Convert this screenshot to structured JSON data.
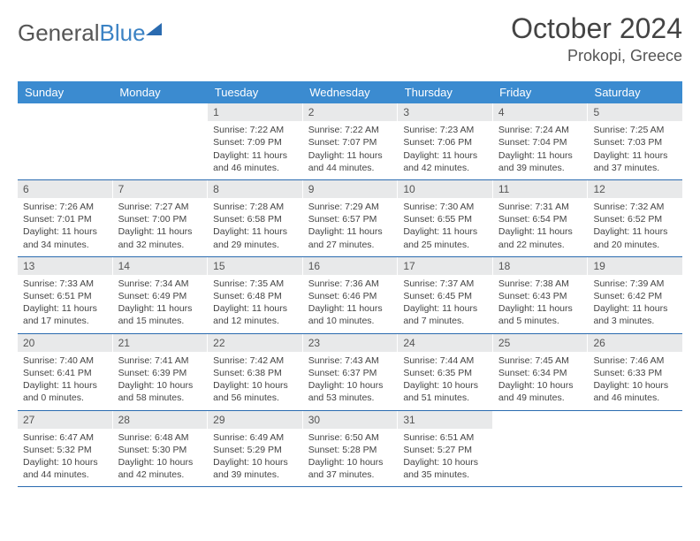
{
  "brand": {
    "name_gray": "General",
    "name_blue": "Blue"
  },
  "title": "October 2024",
  "location": "Prokopi, Greece",
  "colors": {
    "weekday_bg": "#3b8bd0",
    "weekday_fg": "#ffffff",
    "daynum_bg": "#e8e9ea",
    "row_border": "#2a6bb0",
    "text": "#444444"
  },
  "weekdays": [
    "Sunday",
    "Monday",
    "Tuesday",
    "Wednesday",
    "Thursday",
    "Friday",
    "Saturday"
  ],
  "labels": {
    "sunrise": "Sunrise:",
    "sunset": "Sunset:",
    "daylight": "Daylight:"
  },
  "weeks": [
    [
      null,
      null,
      {
        "n": "1",
        "sr": "7:22 AM",
        "ss": "7:09 PM",
        "dl": "11 hours and 46 minutes."
      },
      {
        "n": "2",
        "sr": "7:22 AM",
        "ss": "7:07 PM",
        "dl": "11 hours and 44 minutes."
      },
      {
        "n": "3",
        "sr": "7:23 AM",
        "ss": "7:06 PM",
        "dl": "11 hours and 42 minutes."
      },
      {
        "n": "4",
        "sr": "7:24 AM",
        "ss": "7:04 PM",
        "dl": "11 hours and 39 minutes."
      },
      {
        "n": "5",
        "sr": "7:25 AM",
        "ss": "7:03 PM",
        "dl": "11 hours and 37 minutes."
      }
    ],
    [
      {
        "n": "6",
        "sr": "7:26 AM",
        "ss": "7:01 PM",
        "dl": "11 hours and 34 minutes."
      },
      {
        "n": "7",
        "sr": "7:27 AM",
        "ss": "7:00 PM",
        "dl": "11 hours and 32 minutes."
      },
      {
        "n": "8",
        "sr": "7:28 AM",
        "ss": "6:58 PM",
        "dl": "11 hours and 29 minutes."
      },
      {
        "n": "9",
        "sr": "7:29 AM",
        "ss": "6:57 PM",
        "dl": "11 hours and 27 minutes."
      },
      {
        "n": "10",
        "sr": "7:30 AM",
        "ss": "6:55 PM",
        "dl": "11 hours and 25 minutes."
      },
      {
        "n": "11",
        "sr": "7:31 AM",
        "ss": "6:54 PM",
        "dl": "11 hours and 22 minutes."
      },
      {
        "n": "12",
        "sr": "7:32 AM",
        "ss": "6:52 PM",
        "dl": "11 hours and 20 minutes."
      }
    ],
    [
      {
        "n": "13",
        "sr": "7:33 AM",
        "ss": "6:51 PM",
        "dl": "11 hours and 17 minutes."
      },
      {
        "n": "14",
        "sr": "7:34 AM",
        "ss": "6:49 PM",
        "dl": "11 hours and 15 minutes."
      },
      {
        "n": "15",
        "sr": "7:35 AM",
        "ss": "6:48 PM",
        "dl": "11 hours and 12 minutes."
      },
      {
        "n": "16",
        "sr": "7:36 AM",
        "ss": "6:46 PM",
        "dl": "11 hours and 10 minutes."
      },
      {
        "n": "17",
        "sr": "7:37 AM",
        "ss": "6:45 PM",
        "dl": "11 hours and 7 minutes."
      },
      {
        "n": "18",
        "sr": "7:38 AM",
        "ss": "6:43 PM",
        "dl": "11 hours and 5 minutes."
      },
      {
        "n": "19",
        "sr": "7:39 AM",
        "ss": "6:42 PM",
        "dl": "11 hours and 3 minutes."
      }
    ],
    [
      {
        "n": "20",
        "sr": "7:40 AM",
        "ss": "6:41 PM",
        "dl": "11 hours and 0 minutes."
      },
      {
        "n": "21",
        "sr": "7:41 AM",
        "ss": "6:39 PM",
        "dl": "10 hours and 58 minutes."
      },
      {
        "n": "22",
        "sr": "7:42 AM",
        "ss": "6:38 PM",
        "dl": "10 hours and 56 minutes."
      },
      {
        "n": "23",
        "sr": "7:43 AM",
        "ss": "6:37 PM",
        "dl": "10 hours and 53 minutes."
      },
      {
        "n": "24",
        "sr": "7:44 AM",
        "ss": "6:35 PM",
        "dl": "10 hours and 51 minutes."
      },
      {
        "n": "25",
        "sr": "7:45 AM",
        "ss": "6:34 PM",
        "dl": "10 hours and 49 minutes."
      },
      {
        "n": "26",
        "sr": "7:46 AM",
        "ss": "6:33 PM",
        "dl": "10 hours and 46 minutes."
      }
    ],
    [
      {
        "n": "27",
        "sr": "6:47 AM",
        "ss": "5:32 PM",
        "dl": "10 hours and 44 minutes."
      },
      {
        "n": "28",
        "sr": "6:48 AM",
        "ss": "5:30 PM",
        "dl": "10 hours and 42 minutes."
      },
      {
        "n": "29",
        "sr": "6:49 AM",
        "ss": "5:29 PM",
        "dl": "10 hours and 39 minutes."
      },
      {
        "n": "30",
        "sr": "6:50 AM",
        "ss": "5:28 PM",
        "dl": "10 hours and 37 minutes."
      },
      {
        "n": "31",
        "sr": "6:51 AM",
        "ss": "5:27 PM",
        "dl": "10 hours and 35 minutes."
      },
      null,
      null
    ]
  ]
}
